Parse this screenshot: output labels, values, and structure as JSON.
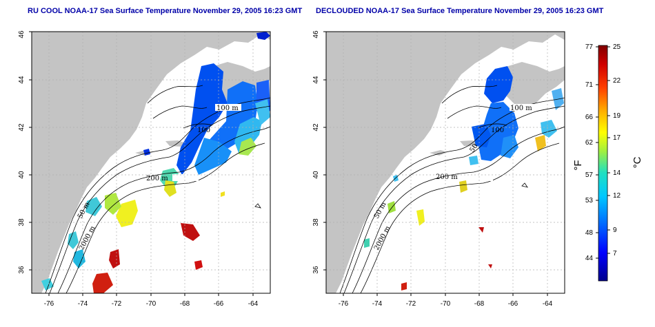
{
  "panels": [
    {
      "title": "RU COOL NOAA-17 Sea Surface Temperature November 29, 2005 16:23 GMT",
      "contour_labels": [
        "100 m",
        "200 m",
        "50 m",
        "2000 m",
        "100"
      ]
    },
    {
      "title": "DECLOUDED NOAA-17 Sea Surface Temperature November 29, 2005 16:23 GMT",
      "contour_labels": [
        "100 m",
        "200 m",
        "50 m",
        "2000 m",
        "100",
        "50"
      ]
    }
  ],
  "x_ticks": [
    "-76",
    "-74",
    "-72",
    "-70",
    "-68",
    "-66",
    "-64"
  ],
  "y_ticks": [
    "36",
    "38",
    "40",
    "42",
    "44",
    "46"
  ],
  "colorbar": {
    "fahrenheit_ticks": [
      "77",
      "71",
      "66",
      "62",
      "57",
      "53",
      "48",
      "44"
    ],
    "celsius_ticks": [
      "25",
      "22",
      "19",
      "17",
      "14",
      "12",
      "9",
      "7"
    ],
    "fahrenheit_unit": "°F",
    "celsius_unit": "°C",
    "colors": [
      "#00008c",
      "#0000ff",
      "#0060ff",
      "#00b4ff",
      "#00e6e6",
      "#40e0a0",
      "#b0f040",
      "#ffff00",
      "#ffb000",
      "#ff5000",
      "#e00000",
      "#900000"
    ]
  },
  "colors": {
    "land": "#c4c4c4",
    "title": "#0000a8",
    "grid": "#b0b0b0"
  }
}
